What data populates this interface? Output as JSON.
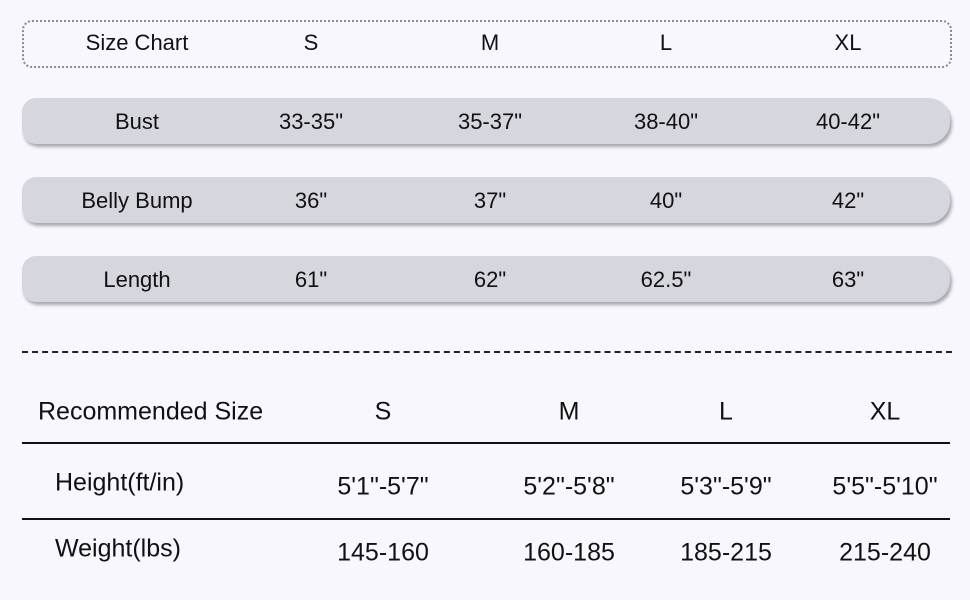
{
  "size_chart": {
    "header": [
      "Size Chart",
      "S",
      "M",
      "L",
      "XL"
    ],
    "rows": [
      [
        "Bust",
        "33-35\"",
        "35-37\"",
        "38-40\"",
        "40-42\""
      ],
      [
        "Belly Bump",
        "36\"",
        "37\"",
        "40\"",
        "42\""
      ],
      [
        "Length",
        "61\"",
        "62\"",
        "62.5\"",
        "63\""
      ]
    ]
  },
  "recommended": {
    "header": [
      "Recommended Size",
      "S",
      "M",
      "L",
      "XL"
    ],
    "rows": [
      [
        "Height(ft/in)",
        "5'1\"-5'7\"",
        "5'2\"-5'8\"",
        "5'3\"-5'9\"",
        "5'5\"-5'10\""
      ],
      [
        "Weight(lbs)",
        "145-160",
        "160-185",
        "185-215",
        "215-240"
      ]
    ]
  }
}
